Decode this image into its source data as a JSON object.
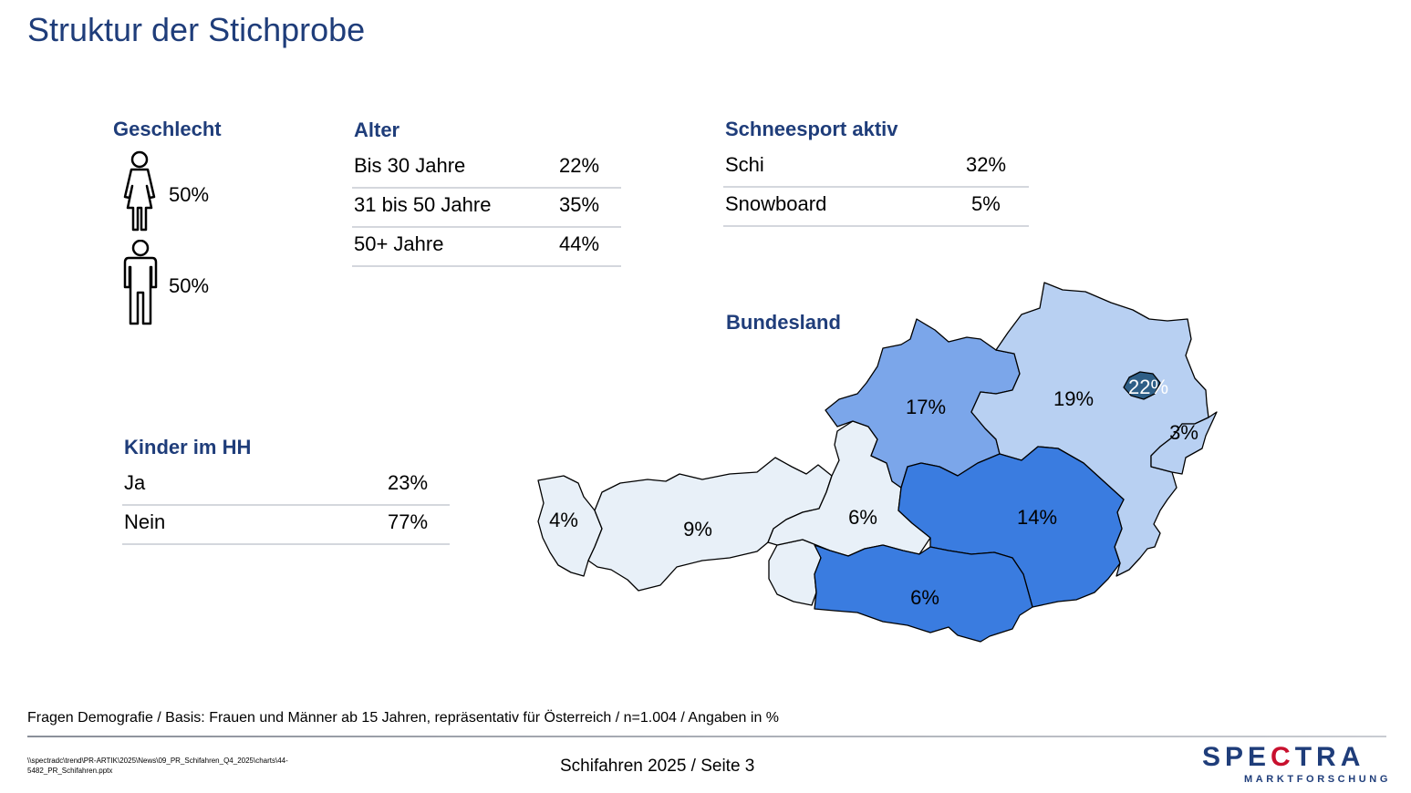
{
  "title": "Struktur der Stichprobe",
  "geschlecht": {
    "heading": "Geschlecht",
    "female_pct": "50%",
    "male_pct": "50%"
  },
  "alter": {
    "heading": "Alter",
    "rows": [
      {
        "label": "Bis 30 Jahre",
        "value": "22%"
      },
      {
        "label": "31 bis 50 Jahre",
        "value": "35%"
      },
      {
        "label": "50+ Jahre",
        "value": "44%"
      }
    ]
  },
  "schneesport": {
    "heading": "Schneesport aktiv",
    "rows": [
      {
        "label": "Schi",
        "value": "32%"
      },
      {
        "label": "Snowboard",
        "value": "5%"
      }
    ]
  },
  "kinder": {
    "heading": "Kinder im HH",
    "rows": [
      {
        "label": "Ja",
        "value": "23%"
      },
      {
        "label": "Nein",
        "value": "77%"
      }
    ]
  },
  "bundesland": {
    "heading": "Bundesland",
    "labels": {
      "vorarlberg": "4%",
      "tirol": "9%",
      "salzburg": "6%",
      "oberoesterreich": "17%",
      "niederoesterreich": "19%",
      "wien": "22%",
      "burgenland": "3%",
      "steiermark": "14%",
      "kaernten": "6%"
    }
  },
  "colors": {
    "title": "#1f3d7a",
    "light": "#e8f0f8",
    "lightblue": "#b8d0f2",
    "mid": "#7ba6ea",
    "strong": "#3a7ce0",
    "dark": "#2e5e86",
    "logo_red": "#c8102e"
  },
  "footer": {
    "note": "Fragen Demografie / Basis: Frauen und Männer ab 15 Jahren, repräsentativ für Österreich / n=1.004 / Angaben in %",
    "path": "\\\\spectradc\\trend\\PR-ARTIK\\2025\\News\\09_PR_Schifahren_Q4_2025\\charts\\44-5482_PR_Schifahren.pptx",
    "page_info": "Schifahren 2025  /  Seite 3",
    "logo_part1": "SPE",
    "logo_part2": "C",
    "logo_part3": "TRA",
    "logo_sub": "MARKTFORSCHUNG"
  }
}
